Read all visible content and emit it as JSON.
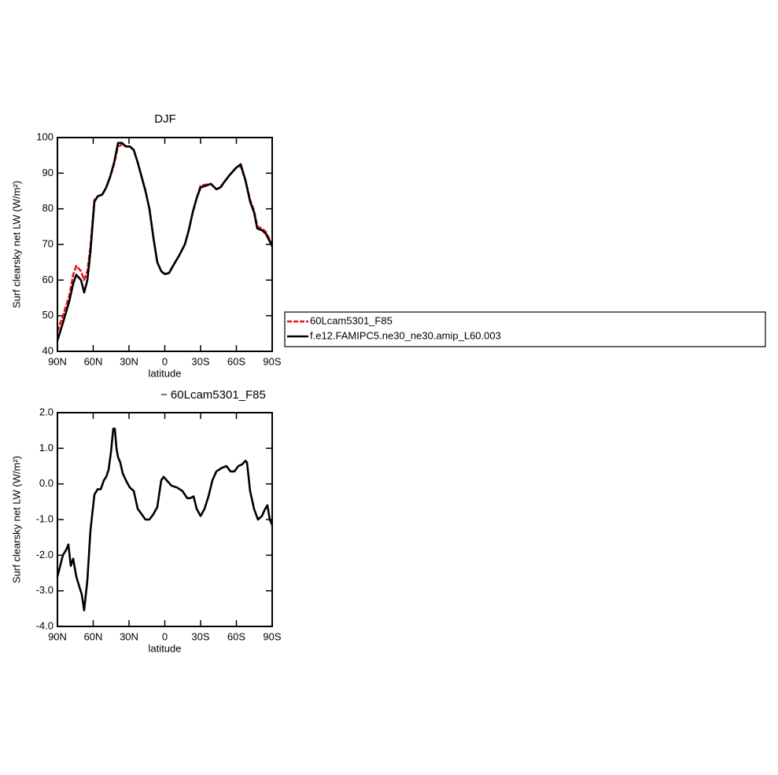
{
  "chart_data": [
    {
      "type": "line",
      "title": "DJF",
      "xlabel": "latitude",
      "ylabel": "Surf clearsky net LW (W/m²)",
      "xlim": [
        90,
        -90
      ],
      "xticks": [
        {
          "value": 90,
          "label": "90N"
        },
        {
          "value": 60,
          "label": "60N"
        },
        {
          "value": 30,
          "label": "30N"
        },
        0,
        {
          "value": -30,
          "label": "30S"
        },
        {
          "value": -60,
          "label": "60S"
        },
        {
          "value": -90,
          "label": "90S"
        }
      ],
      "ylim": [
        40,
        100
      ],
      "yticks": [
        40,
        50,
        60,
        70,
        80,
        90,
        100
      ],
      "x": [
        90,
        85.4,
        80.1,
        76.8,
        74.2,
        70.2,
        67.6,
        64.9,
        62.3,
        59.0,
        56.3,
        52.4,
        49.1,
        45.8,
        42.5,
        39.2,
        35.9,
        32.6,
        29.3,
        26.0,
        22.7,
        16.2,
        12.9,
        9.6,
        6.3,
        3.0,
        0,
        -3.6,
        -6.9,
        -12.2,
        -16.8,
        -20.1,
        -23.4,
        -26.7,
        -30.0,
        -34.6,
        -38.6,
        -43.2,
        -46.5,
        -49.8,
        -54.4,
        -59.7,
        -63.6,
        -67.6,
        -71.5,
        -74.8,
        -77.5,
        -81.4,
        -84.7,
        -90
      ],
      "series": [
        {
          "name": "60Lcam5301_F85",
          "color": "#e8141e",
          "dashed": true,
          "values": [
            45.5,
            50,
            55.5,
            61.5,
            64,
            62.5,
            60,
            62.5,
            69.5,
            82.5,
            83.5,
            84,
            86,
            89,
            92.5,
            97.5,
            98,
            97.5,
            97.5,
            96.5,
            93,
            85,
            80,
            72,
            65,
            62.5,
            61.6,
            62,
            64,
            67,
            70,
            74,
            79,
            83,
            86.5,
            86.8,
            87,
            85.5,
            85.8,
            87.5,
            89.5,
            91.5,
            92,
            88,
            82.5,
            79.5,
            75,
            74.5,
            73.5,
            70
          ]
        },
        {
          "name": "f.e12.FAMIPC5.ne30_ne30.amip_L60.003",
          "color": "#000000",
          "dashed": false,
          "values": [
            43,
            48,
            54,
            59,
            61.5,
            60,
            56.5,
            60,
            68,
            82,
            83.5,
            84,
            86,
            89,
            93,
            98.5,
            98.5,
            97.5,
            97.5,
            96.5,
            93,
            85,
            80,
            72,
            65,
            62.5,
            61.7,
            62,
            64,
            67,
            70,
            74,
            79,
            83,
            86,
            86.5,
            87,
            85.5,
            86,
            87.5,
            89.5,
            91.5,
            92.5,
            88,
            82,
            79,
            74.5,
            74,
            73,
            69.5
          ]
        }
      ]
    },
    {
      "type": "line",
      "title": "− 60Lcam5301_F85",
      "xlabel": "latitude",
      "ylabel": "Surf clearsky net LW (W/m²)",
      "xlim": [
        90,
        -90
      ],
      "xticks": [
        {
          "value": 90,
          "label": "90N"
        },
        {
          "value": 60,
          "label": "60N"
        },
        {
          "value": 30,
          "label": "30N"
        },
        0,
        {
          "value": -30,
          "label": "30S"
        },
        {
          "value": -60,
          "label": "60S"
        },
        {
          "value": -90,
          "label": "90S"
        }
      ],
      "ylim": [
        -4,
        2
      ],
      "yticks": [
        {
          "value": -4,
          "label": "-4.0"
        },
        {
          "value": -3,
          "label": "-3.0"
        },
        {
          "value": -2,
          "label": "-2.0"
        },
        {
          "value": -1,
          "label": "-1.0"
        },
        {
          "value": 0,
          "label": "0.0"
        },
        {
          "value": 1,
          "label": "1.0"
        },
        {
          "value": 2,
          "label": "2.0"
        }
      ],
      "x": [
        90,
        85.4,
        82.7,
        80.8,
        78.8,
        76.8,
        74.2,
        71.5,
        69.6,
        67.6,
        64.9,
        62.3,
        59.0,
        56.3,
        53.7,
        51.1,
        49.1,
        47.1,
        45.1,
        43.2,
        41.9,
        40.5,
        39.2,
        37.3,
        35.3,
        32.6,
        29.3,
        26.0,
        22.7,
        19.4,
        16.2,
        12.9,
        9.6,
        6.3,
        3.0,
        1.0,
        -1.6,
        -5.6,
        -10.2,
        -14.8,
        -18.8,
        -21.4,
        -24.1,
        -26.7,
        -30.0,
        -33.3,
        -36.6,
        -39.9,
        -43.2,
        -47.8,
        -51.7,
        -55.1,
        -58.3,
        -61.6,
        -64.9,
        -67.6,
        -68.9,
        -71.5,
        -74.8,
        -78.1,
        -81.4,
        -84.1,
        -86.0,
        -88.0,
        -90
      ],
      "series": [
        {
          "color": "#000000",
          "dashed": false,
          "values": [
            -2.6,
            -2.0,
            -1.85,
            -1.7,
            -2.3,
            -2.1,
            -2.6,
            -2.9,
            -3.1,
            -3.55,
            -2.7,
            -1.3,
            -0.3,
            -0.15,
            -0.15,
            0.1,
            0.2,
            0.4,
            0.9,
            1.55,
            1.55,
            1.0,
            0.75,
            0.6,
            0.3,
            0.1,
            -0.1,
            -0.2,
            -0.7,
            -0.85,
            -1.0,
            -1.0,
            -0.85,
            -0.65,
            0.1,
            0.2,
            0.1,
            -0.05,
            -0.1,
            -0.2,
            -0.4,
            -0.4,
            -0.35,
            -0.7,
            -0.9,
            -0.7,
            -0.35,
            0.1,
            0.35,
            0.45,
            0.5,
            0.35,
            0.35,
            0.5,
            0.55,
            0.65,
            0.6,
            -0.2,
            -0.7,
            -1.0,
            -0.9,
            -0.7,
            -0.6,
            -1.0,
            -1.15
          ]
        }
      ]
    }
  ]
}
